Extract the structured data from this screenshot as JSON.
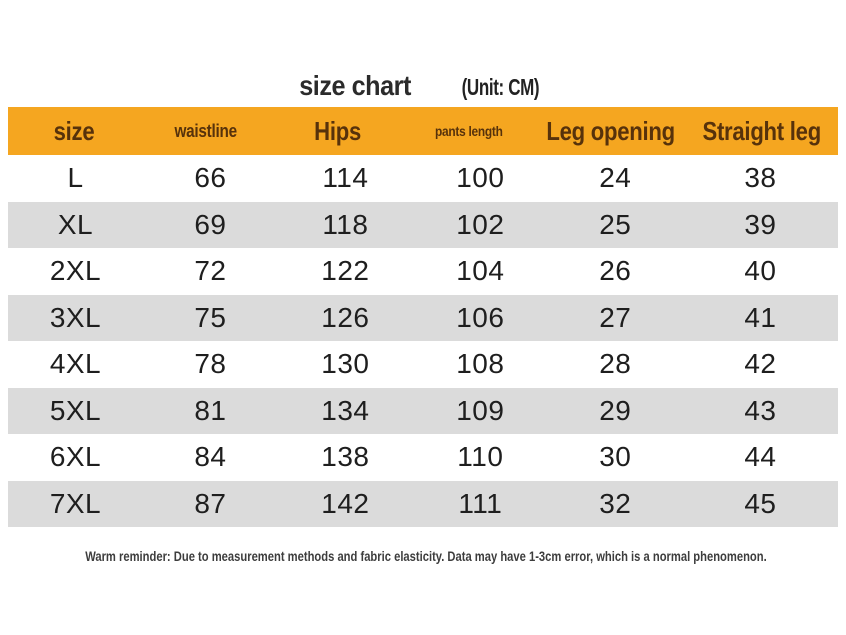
{
  "title": {
    "text": "size chart",
    "unit": "(Unit: CM)"
  },
  "table": {
    "headers": [
      "size",
      "waistline",
      "Hips",
      "pants length",
      "Leg opening",
      "Straight leg"
    ],
    "rows": [
      [
        "L",
        "66",
        "114",
        "100",
        "24",
        "38"
      ],
      [
        "XL",
        "69",
        "118",
        "102",
        "25",
        "39"
      ],
      [
        "2XL",
        "72",
        "122",
        "104",
        "26",
        "40"
      ],
      [
        "3XL",
        "75",
        "126",
        "106",
        "27",
        "41"
      ],
      [
        "4XL",
        "78",
        "130",
        "108",
        "28",
        "42"
      ],
      [
        "5XL",
        "81",
        "134",
        "109",
        "29",
        "43"
      ],
      [
        "6XL",
        "84",
        "138",
        "110",
        "30",
        "44"
      ],
      [
        "7XL",
        "87",
        "142",
        "111",
        "32",
        "45"
      ]
    ],
    "colors": {
      "header_bg": "#f5a620",
      "header_text": "#57320b",
      "stripe": "#dbdbdb",
      "cell_text": "#1e1e1e"
    }
  },
  "footer": {
    "note": "Warm reminder: Due to measurement methods and fabric elasticity. Data may have 1-3cm error, which is a normal phenomenon."
  }
}
